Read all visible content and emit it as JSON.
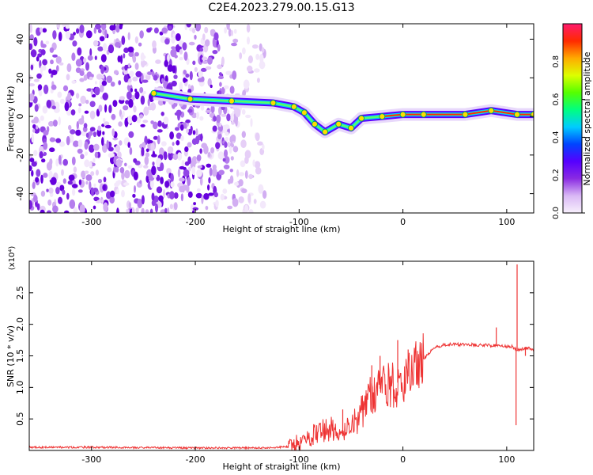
{
  "title": "C2E4.2023.279.00.15.G13",
  "chart_data": [
    {
      "type": "heatmap",
      "xlabel": "Height of straight line (km)",
      "ylabel": "Frequency (Hz)",
      "xlim": [
        -360,
        126
      ],
      "ylim": [
        -50,
        48
      ],
      "x_ticks": [
        -300,
        -200,
        -100,
        0,
        100
      ],
      "y_ticks": [
        -40,
        -20,
        0,
        20,
        40
      ],
      "grid": false,
      "colorbar": {
        "label": "Normalized spectral amplitude",
        "range": [
          0,
          1
        ],
        "ticks": [
          "0.0",
          "0.2",
          "0.4",
          "0.6",
          "0.8"
        ],
        "colors": [
          "#f7f0fc",
          "#d9b8f5",
          "#8a2be2",
          "#5500ff",
          "#0044ff",
          "#00ccff",
          "#00ff80",
          "#55ff00",
          "#ddff00",
          "#ffaa00",
          "#ff2a00",
          "#ff1a6e"
        ]
      },
      "ridge_frequency_hz": [
        {
          "x": -240,
          "y": 12
        },
        {
          "x": -205,
          "y": 9
        },
        {
          "x": -165,
          "y": 8
        },
        {
          "x": -125,
          "y": 7
        },
        {
          "x": -105,
          "y": 5
        },
        {
          "x": -95,
          "y": 2
        },
        {
          "x": -85,
          "y": -4
        },
        {
          "x": -75,
          "y": -8
        },
        {
          "x": -62,
          "y": -4
        },
        {
          "x": -50,
          "y": -6
        },
        {
          "x": -40,
          "y": -1
        },
        {
          "x": -20,
          "y": 0
        },
        {
          "x": 0,
          "y": 1
        },
        {
          "x": 20,
          "y": 1
        },
        {
          "x": 60,
          "y": 1
        },
        {
          "x": 85,
          "y": 3
        },
        {
          "x": 110,
          "y": 1
        },
        {
          "x": 126,
          "y": 1
        }
      ],
      "noise_region_x": [
        -360,
        -130
      ]
    },
    {
      "type": "line",
      "xlabel": "Height of straight line (km)",
      "ylabel": "SNR (10 * v/v)",
      "y_multiplier": "(x10⁴)",
      "xlim": [
        -360,
        126
      ],
      "ylim": [
        0,
        3.0
      ],
      "x_ticks": [
        -300,
        -200,
        -100,
        0,
        100
      ],
      "y_ticks": [
        0.5,
        1.0,
        1.5,
        2.0,
        2.5
      ],
      "grid": false,
      "series": [
        {
          "color": "#ee3333",
          "points": [
            {
              "x": -360,
              "y": 0.05
            },
            {
              "x": -300,
              "y": 0.05
            },
            {
              "x": -200,
              "y": 0.04
            },
            {
              "x": -130,
              "y": 0.04
            },
            {
              "x": -110,
              "y": 0.06
            },
            {
              "x": -100,
              "y": 0.12
            },
            {
              "x": -90,
              "y": 0.2
            },
            {
              "x": -80,
              "y": 0.3
            },
            {
              "x": -70,
              "y": 0.35
            },
            {
              "x": -60,
              "y": 0.3
            },
            {
              "x": -50,
              "y": 0.35
            },
            {
              "x": -40,
              "y": 0.6
            },
            {
              "x": -30,
              "y": 0.9
            },
            {
              "x": -20,
              "y": 1.0
            },
            {
              "x": -10,
              "y": 1.05
            },
            {
              "x": 0,
              "y": 1.1
            },
            {
              "x": 10,
              "y": 1.25
            },
            {
              "x": 20,
              "y": 1.45
            },
            {
              "x": 30,
              "y": 1.62
            },
            {
              "x": 40,
              "y": 1.68
            },
            {
              "x": 60,
              "y": 1.68
            },
            {
              "x": 80,
              "y": 1.67
            },
            {
              "x": 95,
              "y": 1.65
            },
            {
              "x": 105,
              "y": 1.65
            },
            {
              "x": 110,
              "y": 1.6
            },
            {
              "x": 120,
              "y": 1.62
            },
            {
              "x": 126,
              "y": 1.6
            }
          ],
          "spikes": [
            {
              "x": 110,
              "y": 2.95
            },
            {
              "x": 109,
              "y": 0.4
            },
            {
              "x": 90,
              "y": 1.95
            },
            {
              "x": 118,
              "y": 1.5
            },
            {
              "x": -5,
              "y": 1.75
            },
            {
              "x": 5,
              "y": 1.6
            },
            {
              "x": -22,
              "y": 1.5
            },
            {
              "x": -58,
              "y": 0.65
            },
            {
              "x": -30,
              "y": 1.35
            }
          ]
        }
      ]
    }
  ]
}
